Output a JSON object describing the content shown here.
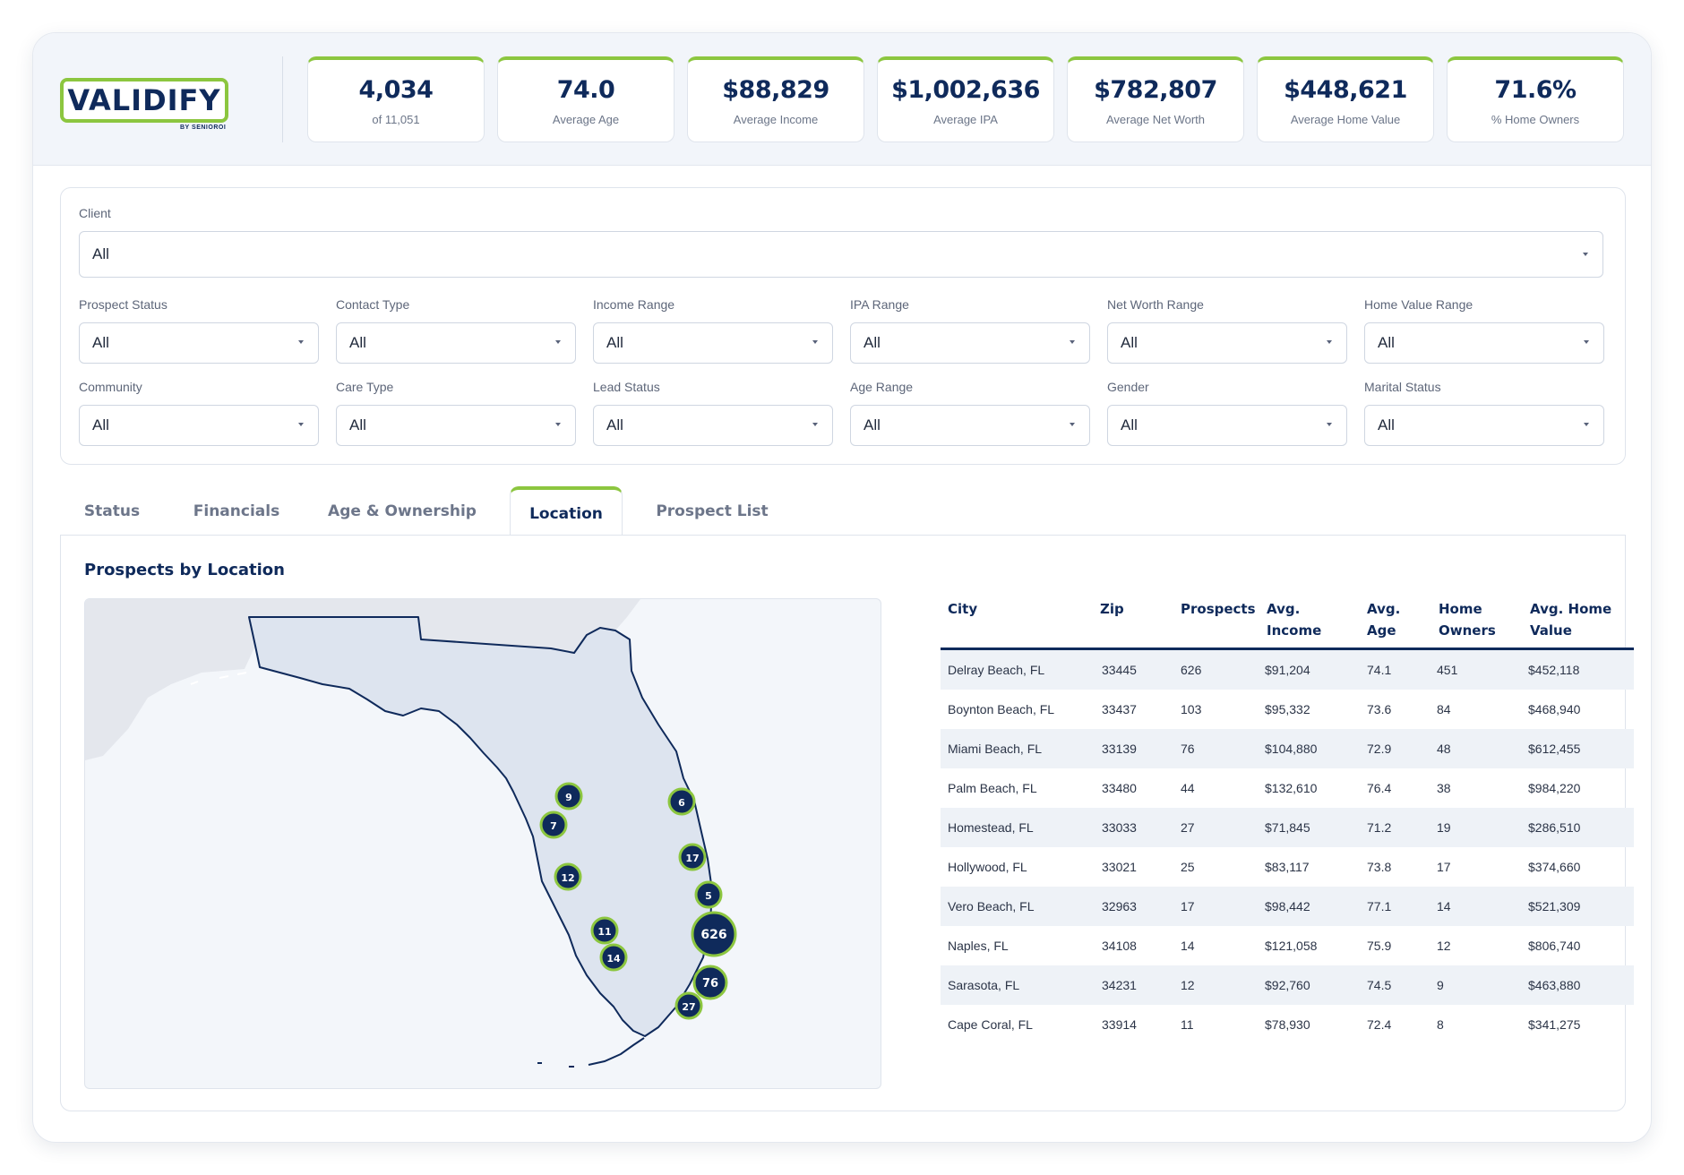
{
  "brand": {
    "logo_text": "VALIDIFY",
    "logo_sub": "BY SENIOROI",
    "accent": "#8cc63f",
    "navy": "#0f2a5b"
  },
  "kpis": [
    {
      "value": "4,034",
      "label": "of 11,051"
    },
    {
      "value": "74.0",
      "label": "Average Age"
    },
    {
      "value": "$88,829",
      "label": "Average Income"
    },
    {
      "value": "$1,002,636",
      "label": "Average IPA"
    },
    {
      "value": "$782,807",
      "label": "Average Net Worth"
    },
    {
      "value": "$448,621",
      "label": "Average Home Value"
    },
    {
      "value": "71.6%",
      "label": "% Home Owners"
    }
  ],
  "filters": {
    "client": {
      "label": "Client",
      "value": "All"
    },
    "row1": [
      {
        "label": "Prospect Status",
        "value": "All"
      },
      {
        "label": "Contact Type",
        "value": "All"
      },
      {
        "label": "Income Range",
        "value": "All"
      },
      {
        "label": "IPA Range",
        "value": "All"
      },
      {
        "label": "Net Worth Range",
        "value": "All"
      },
      {
        "label": "Home Value Range",
        "value": "All"
      }
    ],
    "row2": [
      {
        "label": "Community",
        "value": "All"
      },
      {
        "label": "Care Type",
        "value": "All"
      },
      {
        "label": "Lead Status",
        "value": "All"
      },
      {
        "label": "Age Range",
        "value": "All"
      },
      {
        "label": "Gender",
        "value": "All"
      },
      {
        "label": "Marital Status",
        "value": "All"
      }
    ]
  },
  "tabs": [
    "Status",
    "Financials",
    "Age & Ownership",
    "Location",
    "Prospect List"
  ],
  "active_tab": "Location",
  "panel": {
    "title": "Prospects by Location"
  },
  "map_pins": [
    "9",
    "7",
    "12",
    "11",
    "14",
    "6",
    "17",
    "5",
    "626",
    "76",
    "27"
  ],
  "table": {
    "headers": [
      [
        "City",
        ""
      ],
      [
        "Zip",
        ""
      ],
      [
        "Prospects",
        ""
      ],
      [
        "Avg.",
        "Income"
      ],
      [
        "Avg.",
        "Age"
      ],
      [
        "Home",
        "Owners"
      ],
      [
        "Avg. Home",
        "Value"
      ]
    ],
    "rows": [
      [
        "Delray Beach, FL",
        "33445",
        "626",
        "$91,204",
        "74.1",
        "451",
        "$452,118"
      ],
      [
        "Boynton Beach, FL",
        "33437",
        "103",
        "$95,332",
        "73.6",
        "84",
        "$468,940"
      ],
      [
        "Miami Beach, FL",
        "33139",
        "76",
        "$104,880",
        "72.9",
        "48",
        "$612,455"
      ],
      [
        "Palm Beach, FL",
        "33480",
        "44",
        "$132,610",
        "76.4",
        "38",
        "$984,220"
      ],
      [
        "Homestead, FL",
        "33033",
        "27",
        "$71,845",
        "71.2",
        "19",
        "$286,510"
      ],
      [
        "Hollywood, FL",
        "33021",
        "25",
        "$83,117",
        "73.8",
        "17",
        "$374,660"
      ],
      [
        "Vero Beach, FL",
        "32963",
        "17",
        "$98,442",
        "77.1",
        "14",
        "$521,309"
      ],
      [
        "Naples, FL",
        "34108",
        "14",
        "$121,058",
        "75.9",
        "12",
        "$806,740"
      ],
      [
        "Sarasota, FL",
        "34231",
        "12",
        "$92,760",
        "74.5",
        "9",
        "$463,880"
      ],
      [
        "Cape Coral, FL",
        "33914",
        "11",
        "$78,930",
        "72.4",
        "8",
        "$341,275"
      ]
    ]
  }
}
